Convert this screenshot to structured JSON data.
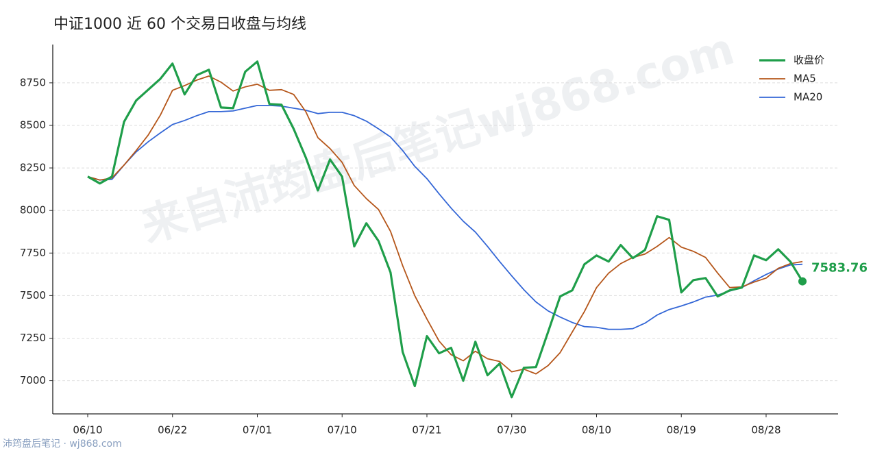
{
  "chart_data": {
    "type": "line",
    "title": "中证1000 近 60 个交易日收盘与均线",
    "categories": [
      "06/10",
      null,
      null,
      null,
      null,
      null,
      null,
      "06/22",
      null,
      null,
      null,
      null,
      null,
      null,
      "07/01",
      null,
      null,
      null,
      null,
      null,
      null,
      "07/10",
      null,
      null,
      null,
      null,
      null,
      null,
      "07/21",
      null,
      null,
      null,
      null,
      null,
      null,
      "07/30",
      null,
      null,
      null,
      null,
      null,
      null,
      "08/10",
      null,
      null,
      null,
      null,
      null,
      null,
      "08/19",
      null,
      null,
      null,
      null,
      null,
      null,
      "08/28",
      null,
      null,
      null
    ],
    "series": [
      {
        "name": "收盘价",
        "color": "#1f9e4a",
        "width": 3.2,
        "values": [
          8199,
          8159,
          8199,
          8521,
          8646,
          8710,
          8774,
          8863,
          8682,
          8795,
          8827,
          8605,
          8601,
          8815,
          8875,
          8625,
          8621,
          8480,
          8312,
          8118,
          8300,
          8199,
          7789,
          7925,
          7821,
          7636,
          7169,
          6968,
          7262,
          7161,
          7193,
          7000,
          7229,
          7032,
          7101,
          6903,
          7076,
          7080,
          7286,
          7495,
          7531,
          7684,
          7736,
          7700,
          7797,
          7720,
          7768,
          7966,
          7945,
          7519,
          7591,
          7603,
          7495,
          7531,
          7547,
          7736,
          7708,
          7772,
          7700,
          7583.76
        ]
      },
      {
        "name": "MA5",
        "color": "#b5561a",
        "width": 1.8,
        "values": [
          8199,
          8179,
          8191,
          8267,
          8352,
          8444,
          8561,
          8706,
          8734,
          8766,
          8790,
          8754,
          8702,
          8726,
          8742,
          8706,
          8710,
          8682,
          8581,
          8428,
          8364,
          8283,
          8147,
          8070,
          8006,
          7877,
          7676,
          7499,
          7362,
          7233,
          7153,
          7117,
          7173,
          7129,
          7113,
          7052,
          7068,
          7040,
          7089,
          7165,
          7286,
          7406,
          7547,
          7632,
          7688,
          7724,
          7744,
          7789,
          7841,
          7785,
          7760,
          7724,
          7632,
          7547,
          7551,
          7579,
          7603,
          7660,
          7688,
          7700
        ]
      },
      {
        "name": "MA20",
        "color": "#3366d6",
        "width": 1.8,
        "values": [
          8199,
          8179,
          8183,
          8267,
          8344,
          8404,
          8456,
          8505,
          8529,
          8557,
          8581,
          8581,
          8585,
          8601,
          8617,
          8617,
          8613,
          8601,
          8589,
          8569,
          8577,
          8577,
          8557,
          8525,
          8480,
          8432,
          8352,
          8259,
          8187,
          8098,
          8014,
          7937,
          7873,
          7789,
          7700,
          7616,
          7535,
          7463,
          7410,
          7374,
          7342,
          7318,
          7314,
          7302,
          7302,
          7306,
          7338,
          7386,
          7418,
          7439,
          7463,
          7491,
          7503,
          7527,
          7547,
          7587,
          7624,
          7656,
          7680,
          7684
        ]
      }
    ],
    "ylim": [
      6805,
      8975
    ],
    "yticks": [
      7000,
      7250,
      7500,
      7750,
      8000,
      8250,
      8500,
      8750
    ],
    "grid": true,
    "legend": "upper right",
    "watermark": "来自沛筠盘后笔记wj868.com"
  },
  "footer": "沛筠盘后笔记 · wj868.com"
}
